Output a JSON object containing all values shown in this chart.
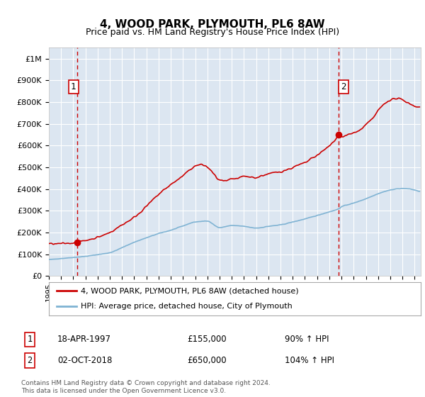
{
  "title": "4, WOOD PARK, PLYMOUTH, PL6 8AW",
  "subtitle": "Price paid vs. HM Land Registry's House Price Index (HPI)",
  "ylim": [
    0,
    1050000
  ],
  "yticks": [
    0,
    100000,
    200000,
    300000,
    400000,
    500000,
    600000,
    700000,
    800000,
    900000,
    1000000
  ],
  "ytick_labels": [
    "£0",
    "£100K",
    "£200K",
    "£300K",
    "£400K",
    "£500K",
    "£600K",
    "£700K",
    "£800K",
    "£900K",
    "£1M"
  ],
  "xlim_start": 1995.0,
  "xlim_end": 2025.5,
  "sale1_date": 1997.3,
  "sale1_price": 155000,
  "sale1_label": "1",
  "sale1_text": "18-APR-1997",
  "sale1_amount": "£155,000",
  "sale1_hpi": "90% ↑ HPI",
  "sale2_date": 2018.75,
  "sale2_price": 650000,
  "sale2_label": "2",
  "sale2_text": "02-OCT-2018",
  "sale2_amount": "£650,000",
  "sale2_hpi": "104% ↑ HPI",
  "legend_line1": "4, WOOD PARK, PLYMOUTH, PL6 8AW (detached house)",
  "legend_line2": "HPI: Average price, detached house, City of Plymouth",
  "footer": "Contains HM Land Registry data © Crown copyright and database right 2024.\nThis data is licensed under the Open Government Licence v3.0.",
  "bg_color": "#dce6f1",
  "line_color_red": "#cc0000",
  "line_color_blue": "#7fb3d3",
  "grid_color": "#ffffff",
  "dashed_color": "#cc0000"
}
